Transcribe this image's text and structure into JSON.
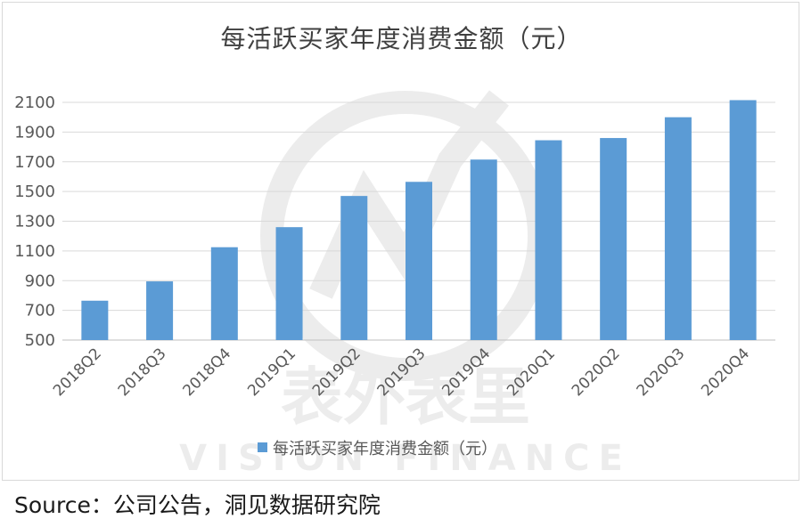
{
  "chart_data": {
    "type": "bar",
    "title": "每活跃买家年度消费金额（元）",
    "categories": [
      "2018Q2",
      "2018Q3",
      "2018Q4",
      "2019Q1",
      "2019Q2",
      "2019Q3",
      "2019Q4",
      "2020Q1",
      "2020Q2",
      "2020Q3",
      "2020Q4"
    ],
    "series": [
      {
        "name": "每活跃买家年度消费金额（元）",
        "values": [
          765,
          895,
          1125,
          1260,
          1470,
          1565,
          1715,
          1845,
          1860,
          2000,
          2115
        ],
        "color": "#5b9bd5"
      }
    ],
    "yticks": [
      500,
      700,
      900,
      1100,
      1300,
      1500,
      1700,
      1900,
      2100
    ],
    "ylim": [
      500,
      2100
    ],
    "grid": true,
    "legend_position": "bottom"
  },
  "watermark": {
    "text_cn": "表外表里",
    "text_en": "VISION FINANCE"
  },
  "source": "Source：公司公告，洞见数据研究院"
}
